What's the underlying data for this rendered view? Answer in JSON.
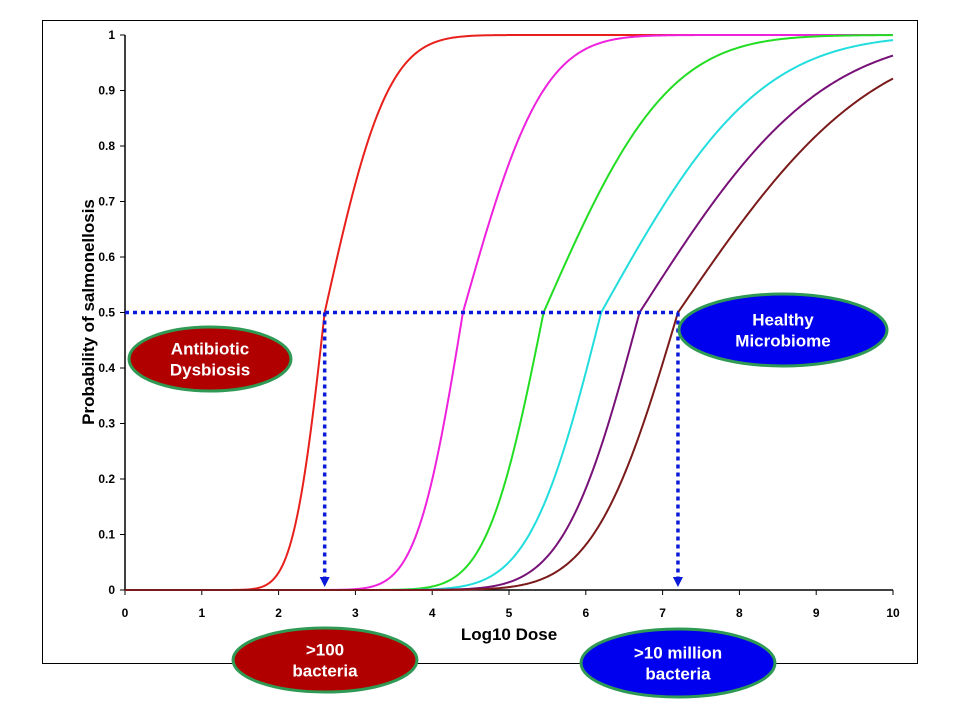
{
  "chart_data": {
    "type": "line",
    "title": "",
    "xlabel": "Log10 Dose",
    "ylabel": "Probability of salmonellosis",
    "xlim": [
      0,
      10
    ],
    "ylim": [
      0,
      1
    ],
    "x_ticks": [
      "0",
      "1",
      "2",
      "3",
      "4",
      "5",
      "6",
      "7",
      "8",
      "9",
      "10"
    ],
    "y_ticks": [
      "0",
      "0.1",
      "0.2",
      "0.3",
      "0.4",
      "0.5",
      "0.6",
      "0.7",
      "0.8",
      "0.9",
      "1"
    ],
    "grid": false,
    "legend": "none",
    "series": [
      {
        "color": "#e8201c",
        "x50": 2.6,
        "x_at_0_01": 1.85,
        "x_at_0_99": 4.1
      },
      {
        "color": "#ee22dd",
        "x50": 4.4,
        "x_at_0_01": 3.3,
        "x_at_0_99": 6.3
      },
      {
        "color": "#22dd22",
        "x50": 5.45,
        "x_at_0_01": 4.1,
        "x_at_0_99": 8.4
      },
      {
        "color": "#22dddd",
        "x50": 6.2,
        "x_at_0_01": 4.5,
        "x_at_0_99": 9.95
      },
      {
        "color": "#771177",
        "x50": 6.7,
        "x_at_0_01": 4.9,
        "x_at_0_99": 11.0
      },
      {
        "color": "#7a1a1a",
        "x50": 7.2,
        "x_at_0_01": 5.2,
        "x_at_0_99": 11.8
      }
    ],
    "reference_lines": {
      "color": "#0a1ad8",
      "y": 0.5,
      "x_low": 2.6,
      "x_high": 7.2
    },
    "annotations": [
      {
        "label_lines": [
          "Antibiotic",
          "Dysbiosis"
        ],
        "fill": "#b00000"
      },
      {
        "label_lines": [
          "Healthy",
          "Microbiome"
        ],
        "fill": "#0000ee"
      },
      {
        "label_lines": [
          ">100",
          "bacteria"
        ],
        "fill": "#b00000"
      },
      {
        "label_lines": [
          ">10 million",
          "bacteria"
        ],
        "fill": "#0000ee"
      }
    ]
  }
}
